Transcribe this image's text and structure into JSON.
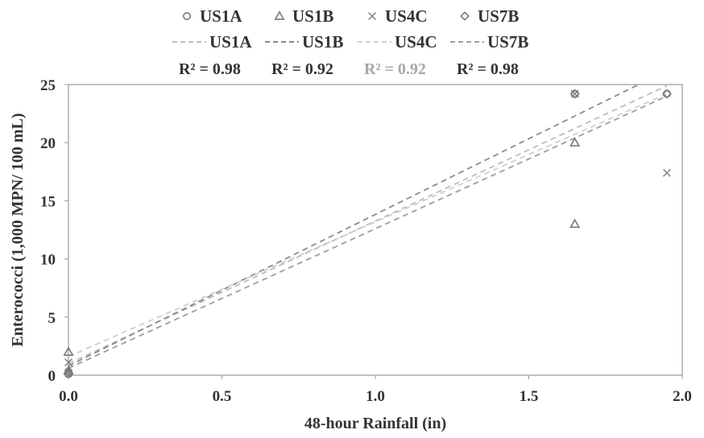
{
  "chart_data": {
    "type": "scatter",
    "xlabel": "48-hour Rainfall (in)",
    "ylabel": "Enterococci (1,000 MPN/ 100 mL)",
    "xlim": [
      0.0,
      2.0
    ],
    "ylim": [
      0,
      25
    ],
    "x_ticks": [
      0.0,
      0.5,
      1.0,
      1.5,
      2.0
    ],
    "x_tick_labels": [
      "0.0",
      "0.5",
      "1.0",
      "1.5",
      "2.0"
    ],
    "y_ticks": [
      0,
      5,
      10,
      15,
      20,
      25
    ],
    "y_tick_labels": [
      "0",
      "5",
      "10",
      "15",
      "20",
      "25"
    ],
    "grid": false,
    "legend_position": "top",
    "series": [
      {
        "name": "US1A",
        "marker": "circle",
        "color": "#7a7a7a",
        "points": [
          [
            0.0,
            0.1
          ],
          [
            0.0,
            0.3
          ],
          [
            1.65,
            24.2
          ],
          [
            1.95,
            24.2
          ]
        ],
        "trendline": {
          "name": "US1A",
          "color": "#bdbdbd",
          "r2_label": "R² = 0.98",
          "fit": [
            [
              0.0,
              1.0
            ],
            [
              1.95,
              24.9
            ]
          ]
        }
      },
      {
        "name": "US1B",
        "marker": "triangle",
        "color": "#7a7a7a",
        "points": [
          [
            0.0,
            2.0
          ],
          [
            0.0,
            0.4
          ],
          [
            1.65,
            20.0
          ],
          [
            1.65,
            13.0
          ]
        ],
        "trendline": {
          "name": "US1B",
          "color": "#8c8c8c",
          "r2_label": "R² = 0.92",
          "fit": [
            [
              0.0,
              0.8
            ],
            [
              1.95,
              26.2
            ]
          ]
        }
      },
      {
        "name": "US4C",
        "marker": "x",
        "color": "#8a8a8a",
        "points": [
          [
            0.0,
            1.1
          ],
          [
            0.0,
            0.2
          ],
          [
            1.65,
            24.2
          ],
          [
            1.95,
            17.4
          ]
        ],
        "trendline": {
          "name": "US4C",
          "color": "#d0d0d0",
          "r2_label": "R² = 0.92",
          "fit": [
            [
              0.0,
              1.6
            ],
            [
              1.95,
              24.2
            ]
          ]
        }
      },
      {
        "name": "US7B",
        "marker": "diamond",
        "color": "#7a7a7a",
        "points": [
          [
            0.0,
            0.1
          ],
          [
            0.0,
            0.2
          ],
          [
            1.65,
            24.2
          ],
          [
            1.95,
            24.2
          ]
        ],
        "trendline": {
          "name": "US7B",
          "color": "#9e9e9e",
          "r2_label": "R² = 0.98",
          "fit": [
            [
              0.0,
              0.6
            ],
            [
              1.95,
              24.0
            ]
          ]
        }
      }
    ]
  }
}
